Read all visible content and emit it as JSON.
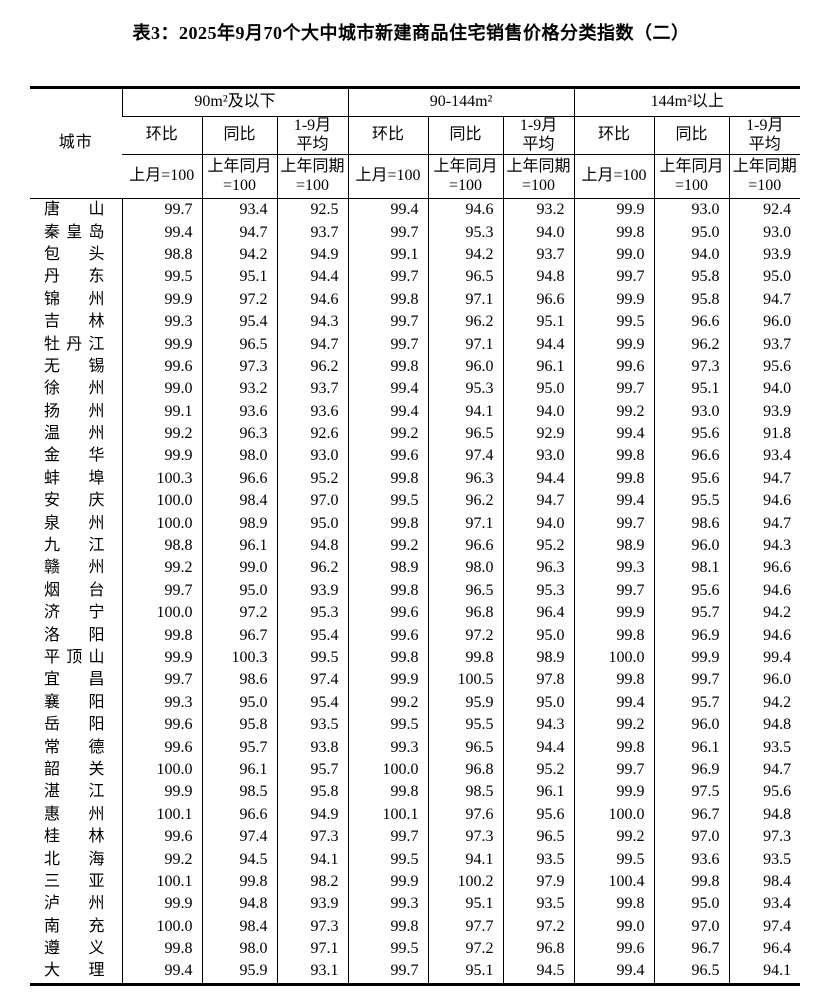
{
  "title": "表3：2025年9月70个大中城市新建商品住宅销售价格分类指数（二）",
  "table": {
    "city_header": "城市",
    "groups": [
      {
        "label": "90m²及以下",
        "sub": [
          "环比",
          "同比",
          "1-9月\n平均"
        ],
        "base": [
          "上月=100",
          "上年同月\n=100",
          "上年同期\n=100"
        ]
      },
      {
        "label": "90-144m²",
        "sub": [
          "环比",
          "同比",
          "1-9月\n平均"
        ],
        "base": [
          "上月=100",
          "上年同月\n=100",
          "上年同期\n=100"
        ]
      },
      {
        "label": "144m²以上",
        "sub": [
          "环比",
          "同比",
          "1-9月\n平均"
        ],
        "base": [
          "上月=100",
          "上年同月\n=100",
          "上年同期\n=100"
        ]
      }
    ],
    "rows": [
      {
        "city": "唐山",
        "values": [
          "99.7",
          "93.4",
          "92.5",
          "99.4",
          "94.6",
          "93.2",
          "99.9",
          "93.0",
          "92.4"
        ]
      },
      {
        "city": "秦皇岛",
        "values": [
          "99.4",
          "94.7",
          "93.7",
          "99.7",
          "95.3",
          "94.0",
          "99.8",
          "95.0",
          "93.0"
        ]
      },
      {
        "city": "包头",
        "values": [
          "98.8",
          "94.2",
          "94.9",
          "99.1",
          "94.2",
          "93.7",
          "99.0",
          "94.0",
          "93.9"
        ]
      },
      {
        "city": "丹东",
        "values": [
          "99.5",
          "95.1",
          "94.4",
          "99.7",
          "96.5",
          "94.8",
          "99.7",
          "95.8",
          "95.0"
        ]
      },
      {
        "city": "锦州",
        "values": [
          "99.9",
          "97.2",
          "94.6",
          "99.8",
          "97.1",
          "96.6",
          "99.9",
          "95.8",
          "94.7"
        ]
      },
      {
        "city": "吉林",
        "values": [
          "99.3",
          "95.4",
          "94.3",
          "99.7",
          "96.2",
          "95.1",
          "99.5",
          "96.6",
          "96.0"
        ]
      },
      {
        "city": "牡丹江",
        "values": [
          "99.9",
          "96.5",
          "94.7",
          "99.7",
          "97.1",
          "94.4",
          "99.9",
          "96.2",
          "93.7"
        ]
      },
      {
        "city": "无锡",
        "values": [
          "99.6",
          "97.3",
          "96.2",
          "99.8",
          "96.0",
          "96.1",
          "99.6",
          "97.3",
          "95.6"
        ]
      },
      {
        "city": "徐州",
        "values": [
          "99.0",
          "93.2",
          "93.7",
          "99.4",
          "95.3",
          "95.0",
          "99.7",
          "95.1",
          "94.0"
        ]
      },
      {
        "city": "扬州",
        "values": [
          "99.1",
          "93.6",
          "93.6",
          "99.4",
          "94.1",
          "94.0",
          "99.2",
          "93.0",
          "93.9"
        ]
      },
      {
        "city": "温州",
        "values": [
          "99.2",
          "96.3",
          "92.6",
          "99.2",
          "96.5",
          "92.9",
          "99.4",
          "95.6",
          "91.8"
        ]
      },
      {
        "city": "金华",
        "values": [
          "99.9",
          "98.0",
          "93.0",
          "99.6",
          "97.4",
          "93.0",
          "99.8",
          "96.6",
          "93.4"
        ]
      },
      {
        "city": "蚌埠",
        "values": [
          "100.3",
          "96.6",
          "95.2",
          "99.8",
          "96.3",
          "94.4",
          "99.8",
          "95.6",
          "94.7"
        ]
      },
      {
        "city": "安庆",
        "values": [
          "100.0",
          "98.4",
          "97.0",
          "99.5",
          "96.2",
          "94.7",
          "99.4",
          "95.5",
          "94.6"
        ]
      },
      {
        "city": "泉州",
        "values": [
          "100.0",
          "98.9",
          "95.0",
          "99.8",
          "97.1",
          "94.0",
          "99.7",
          "98.6",
          "94.7"
        ]
      },
      {
        "city": "九江",
        "values": [
          "98.8",
          "96.1",
          "94.8",
          "99.2",
          "96.6",
          "95.2",
          "98.9",
          "96.0",
          "94.3"
        ]
      },
      {
        "city": "赣州",
        "values": [
          "99.2",
          "99.0",
          "96.2",
          "98.9",
          "98.0",
          "96.3",
          "99.3",
          "98.1",
          "96.6"
        ]
      },
      {
        "city": "烟台",
        "values": [
          "99.7",
          "95.0",
          "93.9",
          "99.8",
          "96.5",
          "95.3",
          "99.7",
          "95.6",
          "94.6"
        ]
      },
      {
        "city": "济宁",
        "values": [
          "100.0",
          "97.2",
          "95.3",
          "99.6",
          "96.8",
          "96.4",
          "99.9",
          "95.7",
          "94.2"
        ]
      },
      {
        "city": "洛阳",
        "values": [
          "99.8",
          "96.7",
          "95.4",
          "99.6",
          "97.2",
          "95.0",
          "99.8",
          "96.9",
          "94.6"
        ]
      },
      {
        "city": "平顶山",
        "values": [
          "99.9",
          "100.3",
          "99.5",
          "99.8",
          "99.8",
          "98.9",
          "100.0",
          "99.9",
          "99.4"
        ]
      },
      {
        "city": "宜昌",
        "values": [
          "99.7",
          "98.6",
          "97.4",
          "99.9",
          "100.5",
          "97.8",
          "99.8",
          "99.7",
          "96.0"
        ]
      },
      {
        "city": "襄阳",
        "values": [
          "99.3",
          "95.0",
          "95.4",
          "99.2",
          "95.9",
          "95.0",
          "99.4",
          "95.7",
          "94.2"
        ]
      },
      {
        "city": "岳阳",
        "values": [
          "99.6",
          "95.8",
          "93.5",
          "99.5",
          "95.5",
          "94.3",
          "99.2",
          "96.0",
          "94.8"
        ]
      },
      {
        "city": "常德",
        "values": [
          "99.6",
          "95.7",
          "93.8",
          "99.3",
          "96.5",
          "94.4",
          "99.8",
          "96.1",
          "93.5"
        ]
      },
      {
        "city": "韶关",
        "values": [
          "100.0",
          "96.1",
          "95.7",
          "100.0",
          "96.8",
          "95.2",
          "99.7",
          "96.9",
          "94.7"
        ]
      },
      {
        "city": "湛江",
        "values": [
          "99.9",
          "98.5",
          "95.8",
          "99.8",
          "98.5",
          "96.1",
          "99.9",
          "97.5",
          "95.6"
        ]
      },
      {
        "city": "惠州",
        "values": [
          "100.1",
          "96.6",
          "94.9",
          "100.1",
          "97.6",
          "95.6",
          "100.0",
          "96.7",
          "94.8"
        ]
      },
      {
        "city": "桂林",
        "values": [
          "99.6",
          "97.4",
          "97.3",
          "99.7",
          "97.3",
          "96.5",
          "99.2",
          "97.0",
          "97.3"
        ]
      },
      {
        "city": "北海",
        "values": [
          "99.2",
          "94.5",
          "94.1",
          "99.5",
          "94.1",
          "93.5",
          "99.5",
          "93.6",
          "93.5"
        ]
      },
      {
        "city": "三亚",
        "values": [
          "100.1",
          "99.8",
          "98.2",
          "99.9",
          "100.2",
          "97.9",
          "100.4",
          "99.8",
          "98.4"
        ]
      },
      {
        "city": "泸州",
        "values": [
          "99.9",
          "94.8",
          "93.9",
          "99.3",
          "95.1",
          "93.5",
          "99.8",
          "95.0",
          "93.4"
        ]
      },
      {
        "city": "南充",
        "values": [
          "100.0",
          "98.4",
          "97.3",
          "99.8",
          "97.7",
          "97.2",
          "99.0",
          "97.0",
          "97.4"
        ]
      },
      {
        "city": "遵义",
        "values": [
          "99.8",
          "98.0",
          "97.1",
          "99.5",
          "97.2",
          "96.8",
          "99.6",
          "96.7",
          "96.4"
        ]
      },
      {
        "city": "大理",
        "values": [
          "99.4",
          "95.9",
          "93.1",
          "99.7",
          "95.1",
          "94.5",
          "99.4",
          "96.5",
          "94.1"
        ]
      }
    ]
  }
}
